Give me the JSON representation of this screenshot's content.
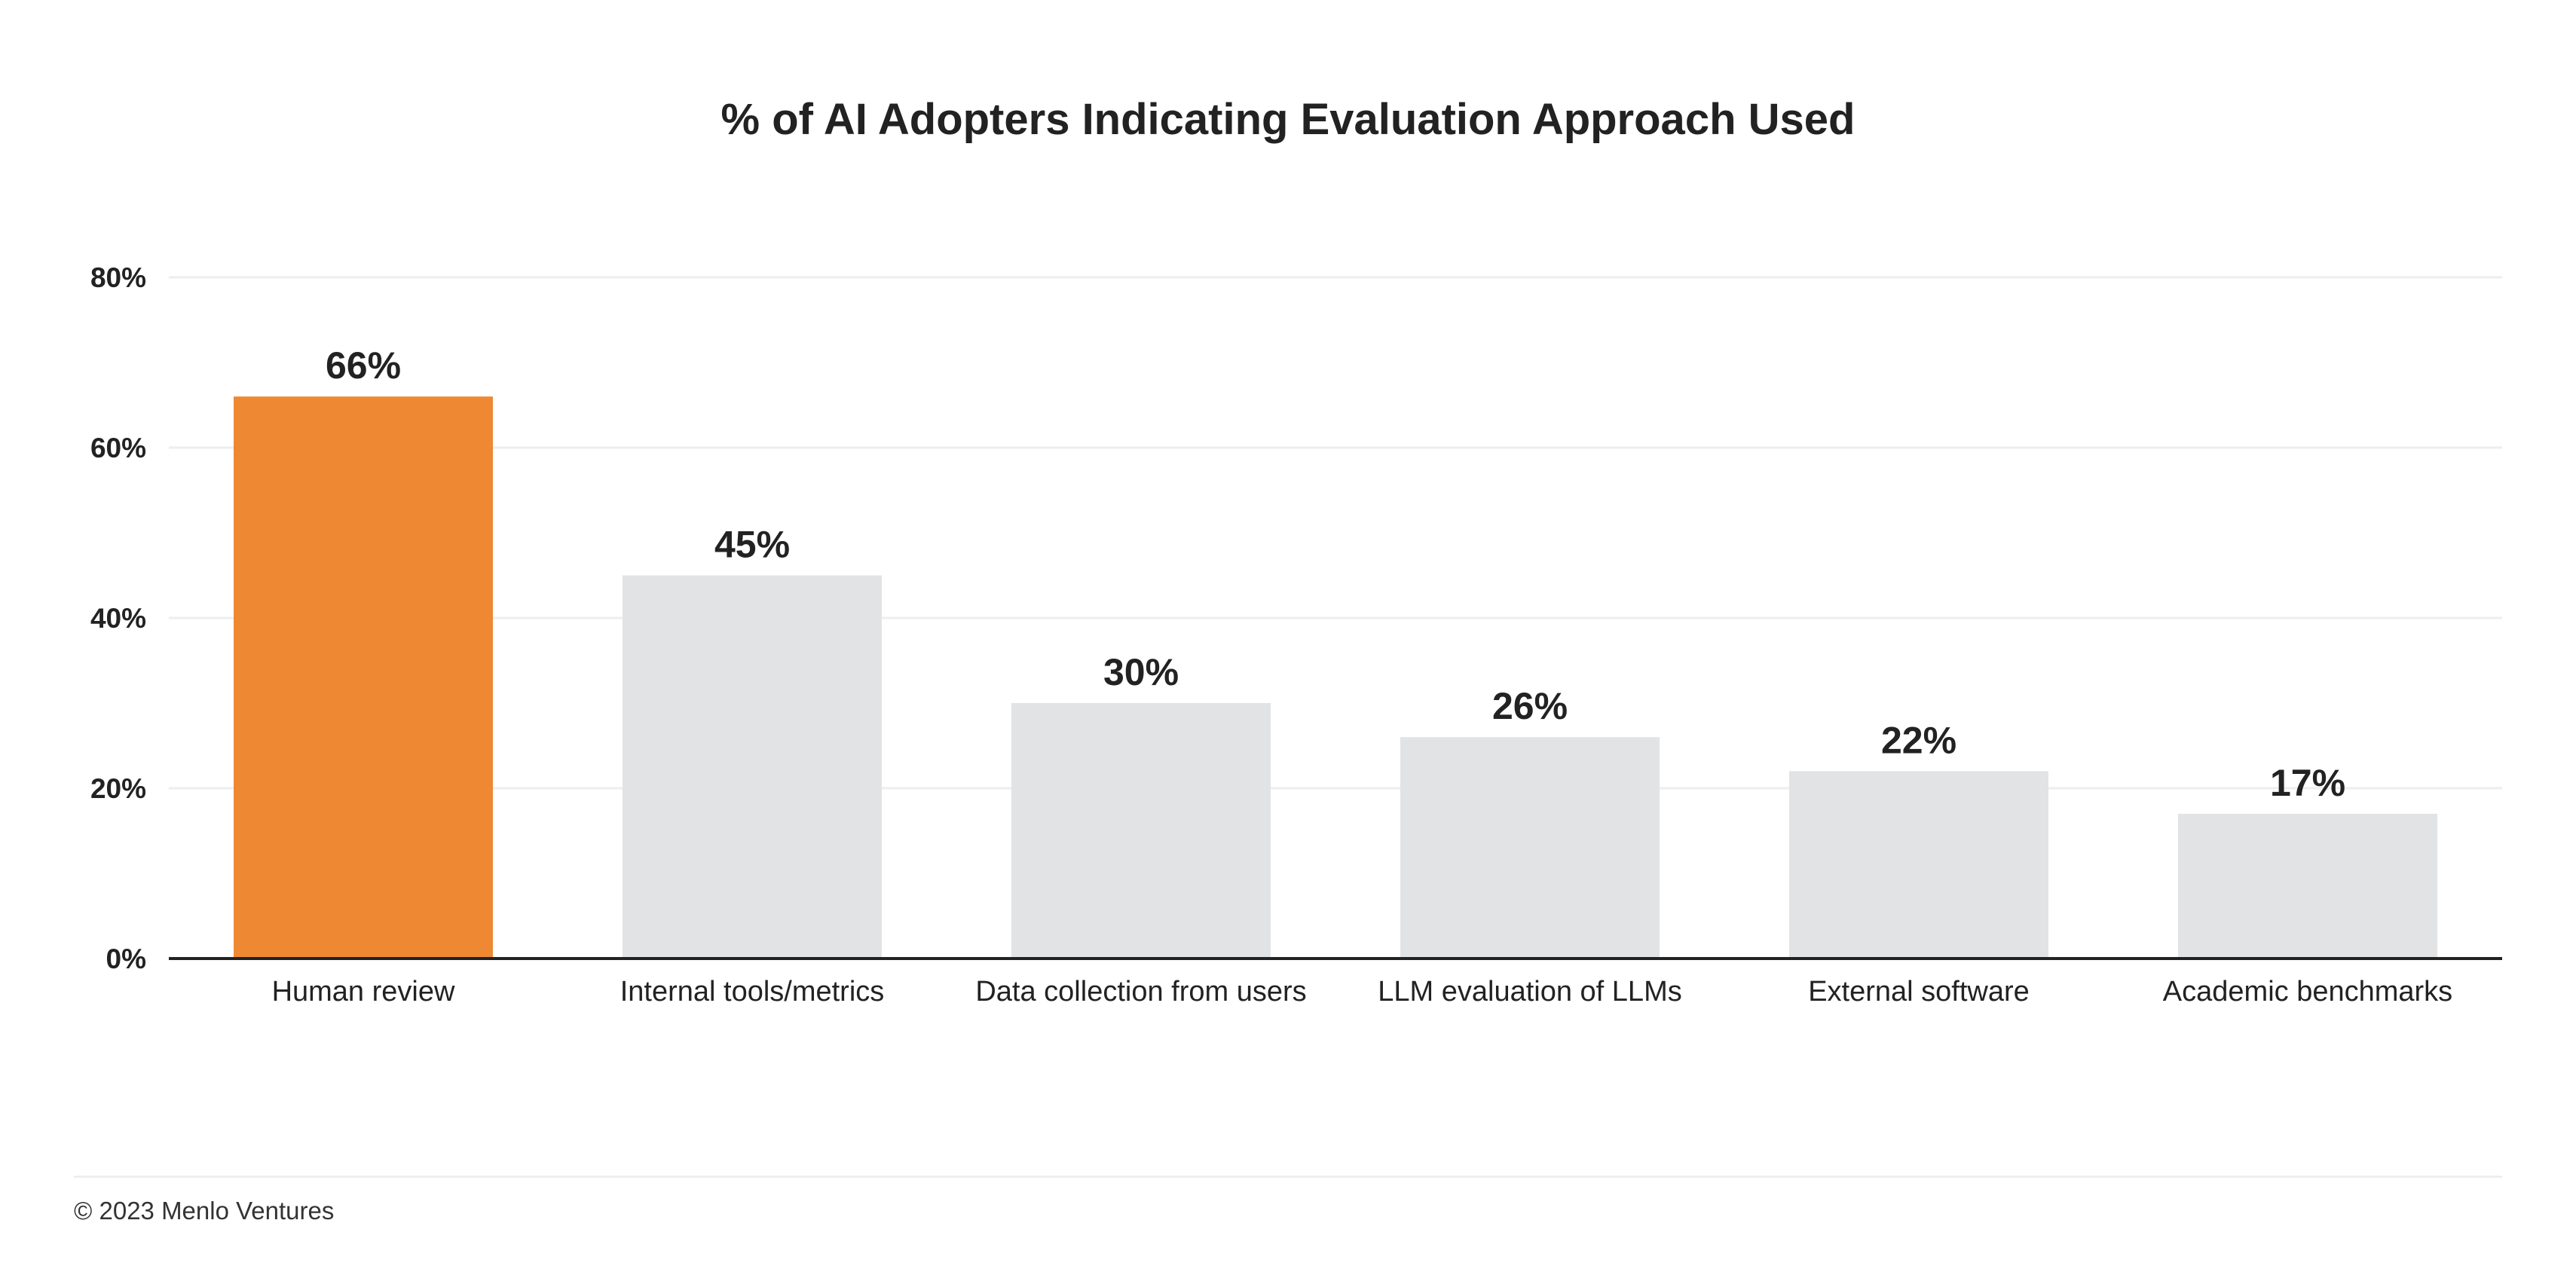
{
  "chart_data": {
    "type": "bar",
    "title": "% of AI Adopters Indicating Evaluation Approach Used",
    "categories": [
      "Human review",
      "Internal tools/metrics",
      "Data collection from users",
      "LLM evaluation of LLMs",
      "External software",
      "Academic benchmarks"
    ],
    "values": [
      66,
      45,
      30,
      26,
      22,
      17
    ],
    "value_labels": [
      "66%",
      "45%",
      "30%",
      "26%",
      "22%",
      "17%"
    ],
    "highlighted_category": "Human review",
    "xlabel": "",
    "ylabel": "",
    "ylim": [
      0,
      80
    ],
    "y_ticks": [
      0,
      20,
      40,
      60,
      80
    ],
    "y_tick_labels": [
      "0%",
      "20%",
      "40%",
      "60%",
      "80%"
    ],
    "grid": true,
    "legend": "none",
    "colors": {
      "highlight": "#EE8833",
      "default": "#E2E3E4",
      "gridline": "#EEEEEE",
      "axis": "#222222",
      "text": "#222222"
    }
  },
  "footer": {
    "copyright": "© 2023 Menlo Ventures"
  }
}
